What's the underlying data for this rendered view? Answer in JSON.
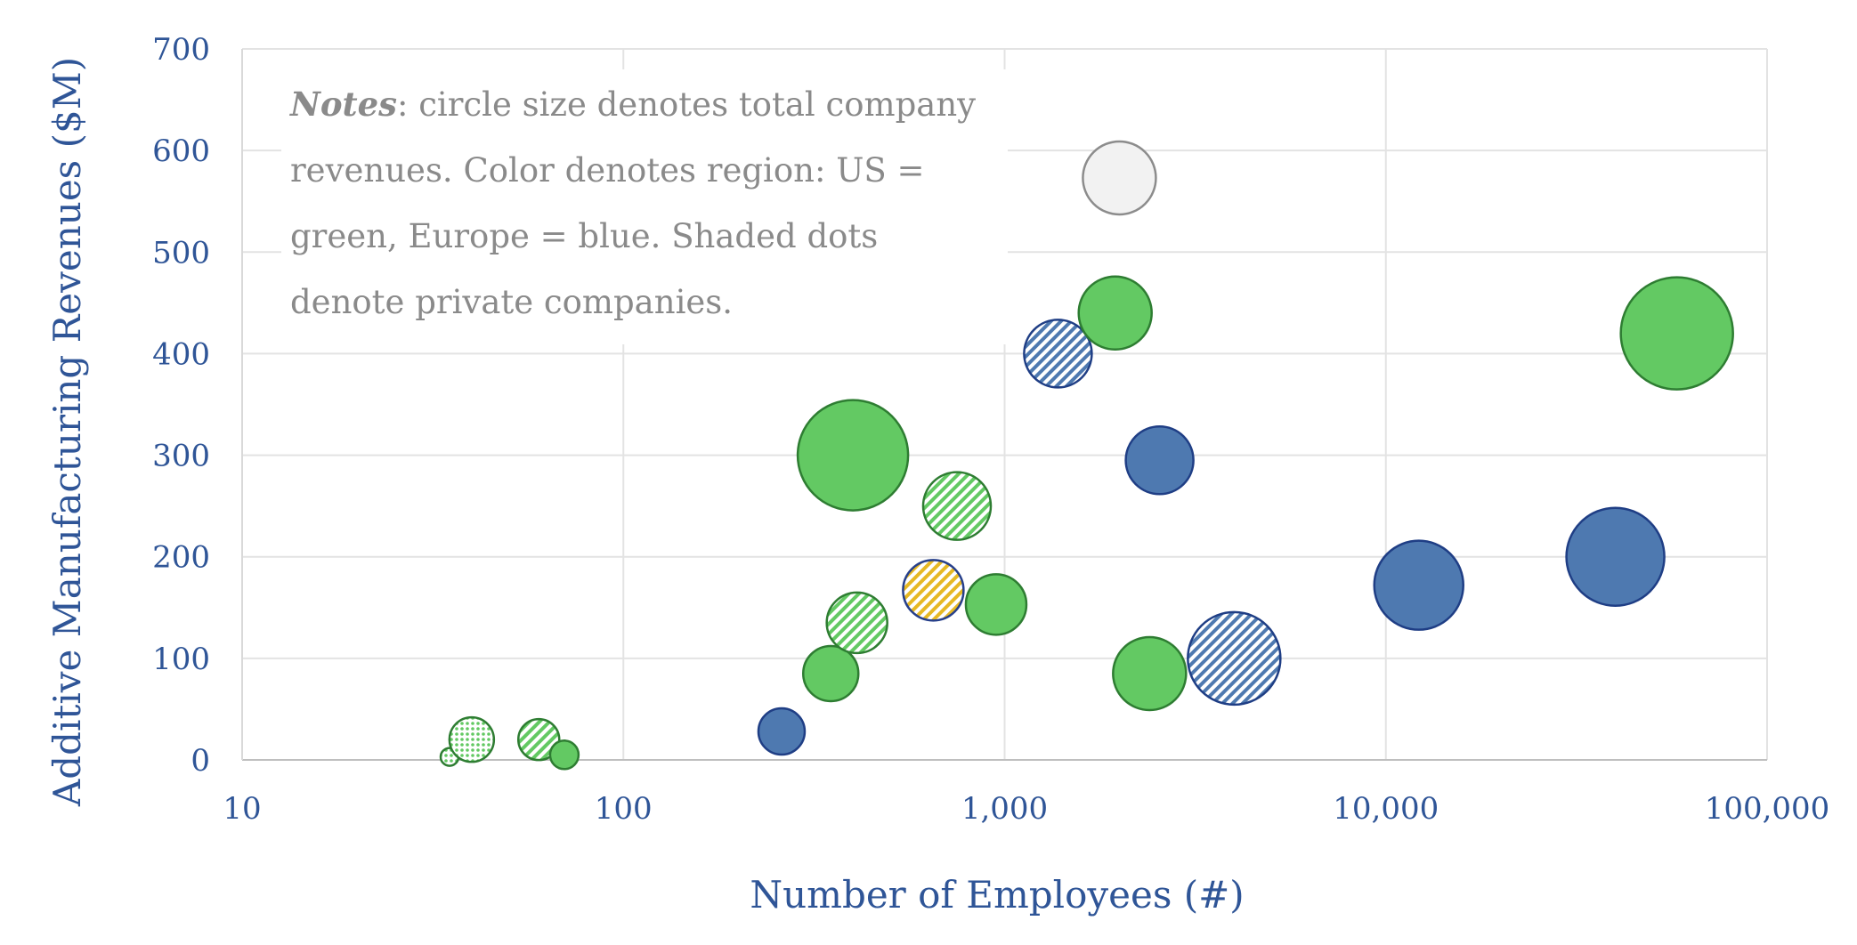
{
  "chart_data": {
    "type": "scatter",
    "subtype": "bubble",
    "xlabel": "Number of Employees (#)",
    "ylabel": "Additive Manufacturing Revenues ($M)",
    "x_scale": "log",
    "xlim": [
      10,
      100000
    ],
    "ylim": [
      0,
      700
    ],
    "x_ticks": [
      10,
      100,
      1000,
      10000,
      100000
    ],
    "x_tick_labels": [
      "10",
      "100",
      "1,000",
      "10,000",
      "100,000"
    ],
    "y_ticks": [
      0,
      100,
      200,
      300,
      400,
      500,
      600,
      700
    ],
    "y_tick_labels": [
      "0",
      "100",
      "200",
      "300",
      "400",
      "500",
      "600",
      "700"
    ],
    "grid": true,
    "notes": {
      "lead": "Notes",
      "text": ": circle size denotes total company revenues. Color denotes region: US = green, Europe = blue. Shaded dots denote private companies."
    },
    "colors": {
      "green_fill": "#63c963",
      "green_edge": "#2e7d32",
      "blue_fill": "#4e79b0",
      "blue_edge": "#1f3e85",
      "gold_fill": "#e6b824",
      "gold_edge": "#27408b",
      "grey_fill": "#f2f2f2",
      "grey_edge": "#8c8c8c"
    },
    "points": [
      {
        "x": 35,
        "y": 3,
        "r": 10,
        "color": "green",
        "style": "dotted"
      },
      {
        "x": 40,
        "y": 20,
        "r": 25,
        "color": "green",
        "style": "dotted"
      },
      {
        "x": 60,
        "y": 20,
        "r": 23,
        "color": "green",
        "style": "hatch"
      },
      {
        "x": 70,
        "y": 5,
        "r": 16,
        "color": "green",
        "style": "solid"
      },
      {
        "x": 260,
        "y": 28,
        "r": 26,
        "color": "blue",
        "style": "solid"
      },
      {
        "x": 350,
        "y": 85,
        "r": 31,
        "color": "green",
        "style": "solid"
      },
      {
        "x": 400,
        "y": 300,
        "r": 62,
        "color": "green",
        "style": "solid"
      },
      {
        "x": 410,
        "y": 135,
        "r": 34,
        "color": "green",
        "style": "hatch"
      },
      {
        "x": 650,
        "y": 167,
        "r": 34,
        "color": "gold",
        "style": "hatch"
      },
      {
        "x": 750,
        "y": 250,
        "r": 38,
        "color": "green",
        "style": "hatch"
      },
      {
        "x": 950,
        "y": 153,
        "r": 34,
        "color": "green",
        "style": "solid"
      },
      {
        "x": 1380,
        "y": 400,
        "r": 38,
        "color": "blue",
        "style": "hatch"
      },
      {
        "x": 1950,
        "y": 440,
        "r": 41,
        "color": "green",
        "style": "solid"
      },
      {
        "x": 2000,
        "y": 573,
        "r": 41,
        "color": "grey",
        "style": "solid"
      },
      {
        "x": 2400,
        "y": 85,
        "r": 41,
        "color": "green",
        "style": "solid"
      },
      {
        "x": 2550,
        "y": 295,
        "r": 38,
        "color": "blue",
        "style": "solid"
      },
      {
        "x": 4000,
        "y": 100,
        "r": 52,
        "color": "blue",
        "style": "hatch"
      },
      {
        "x": 12200,
        "y": 172,
        "r": 50,
        "color": "blue",
        "style": "solid"
      },
      {
        "x": 40000,
        "y": 200,
        "r": 55,
        "color": "blue",
        "style": "solid"
      },
      {
        "x": 58000,
        "y": 420,
        "r": 63,
        "color": "green",
        "style": "solid"
      }
    ]
  }
}
